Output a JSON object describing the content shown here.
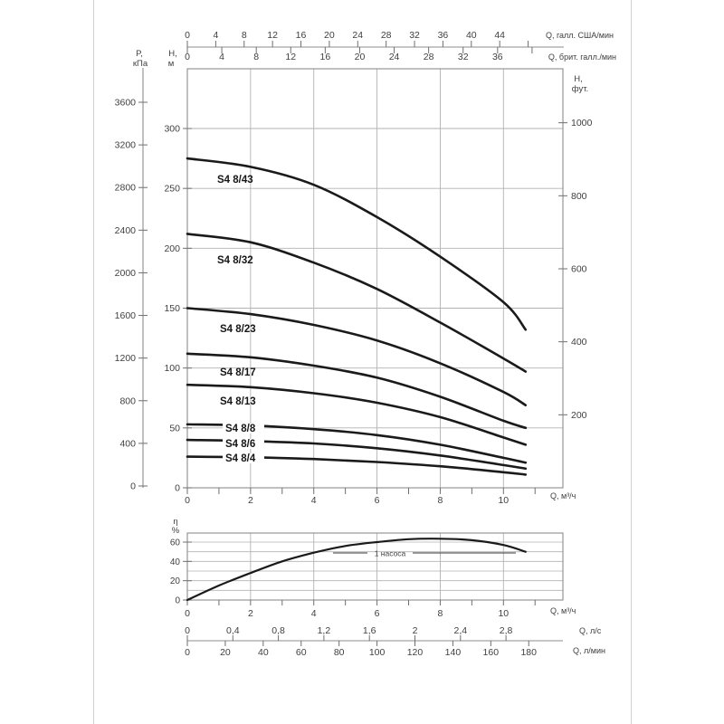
{
  "colors": {
    "curve": "#1a1a1a",
    "grid": "#b2b2b2",
    "frame": "#8c8c8c",
    "tick": "#6f6f6f",
    "text": "#3f3f3f",
    "background": "#ffffff",
    "scan_edge": "#d2d2d2"
  },
  "chart_data": [
    {
      "id": "pump-head-curves",
      "type": "line",
      "title": "",
      "xlabel": "Q, м³/ч",
      "x_ticks": [
        "0",
        "2",
        "4",
        "6",
        "8",
        "10"
      ],
      "x_range": [
        0,
        11.9
      ],
      "grid": "on",
      "axes": {
        "us_gpm": {
          "label": "Q, галл. США/мин",
          "ticks": [
            "0",
            "4",
            "8",
            "12",
            "16",
            "20",
            "24",
            "28",
            "32",
            "36",
            "40",
            "44"
          ]
        },
        "imp_gpm": {
          "label": "Q, брит. галл./мин",
          "ticks": [
            "0",
            "4",
            "8",
            "12",
            "16",
            "20",
            "24",
            "28",
            "32",
            "36"
          ]
        },
        "kpa": {
          "label_lines": [
            "P,",
            "кПа"
          ],
          "ticks": [
            "3600",
            "3200",
            "2800",
            "2400",
            "2000",
            "1600",
            "1200",
            "800",
            "400",
            "0"
          ]
        },
        "m": {
          "label_lines": [
            "H,",
            "м"
          ],
          "ticks": [
            "300",
            "250",
            "200",
            "150",
            "100",
            "50",
            "0"
          ]
        },
        "ft": {
          "label_lines": [
            "H,",
            "фут."
          ],
          "ticks": [
            "1000",
            "800",
            "600",
            "400",
            "200"
          ]
        }
      },
      "series": [
        {
          "name": "S4 8/43",
          "points_q_h": [
            [
              0,
              275
            ],
            [
              2,
              268
            ],
            [
              4,
              253
            ],
            [
              6,
              226
            ],
            [
              8,
              193
            ],
            [
              10,
              155
            ],
            [
              10.7,
              132
            ]
          ]
        },
        {
          "name": "S4 8/32",
          "points_q_h": [
            [
              0,
              212
            ],
            [
              2,
              205
            ],
            [
              4,
              188
            ],
            [
              6,
              166
            ],
            [
              8,
              138
            ],
            [
              10,
              108
            ],
            [
              10.7,
              97
            ]
          ]
        },
        {
          "name": "S4 8/23",
          "points_q_h": [
            [
              0,
              150
            ],
            [
              2,
              145
            ],
            [
              4,
              136
            ],
            [
              6,
              123
            ],
            [
              8,
              104
            ],
            [
              10,
              80
            ],
            [
              10.7,
              69
            ]
          ]
        },
        {
          "name": "S4 8/17",
          "points_q_h": [
            [
              0,
              112
            ],
            [
              2,
              109
            ],
            [
              4,
              102
            ],
            [
              6,
              92
            ],
            [
              8,
              76
            ],
            [
              10,
              56
            ],
            [
              10.7,
              50
            ]
          ]
        },
        {
          "name": "S4 8/13",
          "points_q_h": [
            [
              0,
              86
            ],
            [
              2,
              84
            ],
            [
              4,
              79
            ],
            [
              6,
              71
            ],
            [
              8,
              59
            ],
            [
              10,
              42
            ],
            [
              10.7,
              36
            ]
          ]
        },
        {
          "name": "S4 8/8",
          "points_q_h": [
            [
              0,
              53
            ],
            [
              2,
              52
            ],
            [
              4,
              49
            ],
            [
              6,
              44
            ],
            [
              8,
              36
            ],
            [
              10,
              25
            ],
            [
              10.7,
              21
            ]
          ]
        },
        {
          "name": "S4 8/6",
          "points_q_h": [
            [
              0,
              40
            ],
            [
              2,
              39
            ],
            [
              4,
              37
            ],
            [
              6,
              33
            ],
            [
              8,
              27
            ],
            [
              10,
              19
            ],
            [
              10.7,
              16
            ]
          ]
        },
        {
          "name": "S4 8/4",
          "points_q_h": [
            [
              0,
              26
            ],
            [
              2,
              25.5
            ],
            [
              4,
              24
            ],
            [
              6,
              21.5
            ],
            [
              8,
              18
            ],
            [
              10,
              13
            ],
            [
              10.7,
              11
            ]
          ]
        }
      ]
    },
    {
      "id": "efficiency-curve",
      "type": "line",
      "ylabel_lines": [
        "η",
        "%"
      ],
      "y_ticks": [
        "60",
        "40",
        "20",
        "0"
      ],
      "xlabel": "Q, м³/ч",
      "x_ticks": [
        "0",
        "2",
        "4",
        "6",
        "8",
        "10"
      ],
      "annotation": "1 насоса",
      "grid": "on",
      "series": [
        {
          "name": "1 насоса",
          "points_q_eta": [
            [
              0,
              0
            ],
            [
              1,
              15
            ],
            [
              2,
              28
            ],
            [
              3,
              40
            ],
            [
              4,
              49
            ],
            [
              5,
              56
            ],
            [
              6,
              60
            ],
            [
              7,
              63
            ],
            [
              8,
              63.5
            ],
            [
              9,
              62
            ],
            [
              10,
              57
            ],
            [
              10.7,
              50
            ]
          ]
        }
      ],
      "axes": {
        "ls": {
          "label": "Q, л/с",
          "ticks": [
            "0",
            "0,4",
            "0,8",
            "1,2",
            "1,6",
            "2",
            "2,4",
            "2,8"
          ]
        },
        "lmin": {
          "label": "Q, л/мин",
          "ticks": [
            "0",
            "20",
            "40",
            "60",
            "80",
            "100",
            "120",
            "140",
            "160",
            "180"
          ]
        }
      }
    }
  ]
}
